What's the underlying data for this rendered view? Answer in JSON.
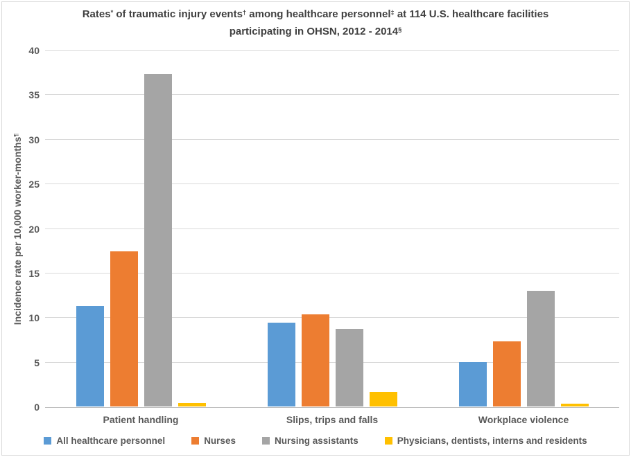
{
  "chart_data": {
    "type": "bar",
    "title": {
      "text": "Rates* of traumatic injury events† among healthcare personnel‡ at 114 U.S. healthcare facilities participating in OHSN, 2012 - 2014§",
      "segments": [
        {
          "text": "Rates"
        },
        {
          "sup": "*"
        },
        {
          "text": " of traumatic injury events"
        },
        {
          "sup": "†"
        },
        {
          "text": " among healthcare personnel"
        },
        {
          "sup": "‡"
        },
        {
          "text": " at 114 U.S. healthcare facilities participating in OHSN, 2012 - 2014"
        },
        {
          "sup": "§"
        }
      ]
    },
    "ylabel": {
      "text": "Incidence rate per 10,000 worker-months¶",
      "segments": [
        {
          "text": "Incidence rate per 10,000 worker-months"
        },
        {
          "sup": "¶"
        }
      ]
    },
    "xlabel": "",
    "ylim": [
      0,
      40
    ],
    "yticks": [
      0,
      5,
      10,
      15,
      20,
      25,
      30,
      35,
      40
    ],
    "grid": true,
    "legend_position": "bottom",
    "categories": [
      "Patient handling",
      "Slips, trips and falls",
      "Workplace violence"
    ],
    "series": [
      {
        "name": "All healthcare personnel",
        "color": "#5B9BD5",
        "values": [
          11.3,
          9.4,
          5.0
        ]
      },
      {
        "name": "Nurses",
        "color": "#ED7D31",
        "values": [
          17.4,
          10.3,
          7.3
        ]
      },
      {
        "name": "Nursing assistants",
        "color": "#A5A5A5",
        "values": [
          37.3,
          8.7,
          13.0
        ]
      },
      {
        "name": "Physicians, dentists, interns and residents",
        "color": "#FFC000",
        "values": [
          0.4,
          1.6,
          0.3
        ]
      }
    ],
    "colors": {
      "title_text": "#404040",
      "axis_text": "#595959",
      "gridline": "#D9D9D9",
      "axis_line": "#BFBFBF",
      "background": "#FFFFFF",
      "border": "#D9D9D9"
    }
  }
}
